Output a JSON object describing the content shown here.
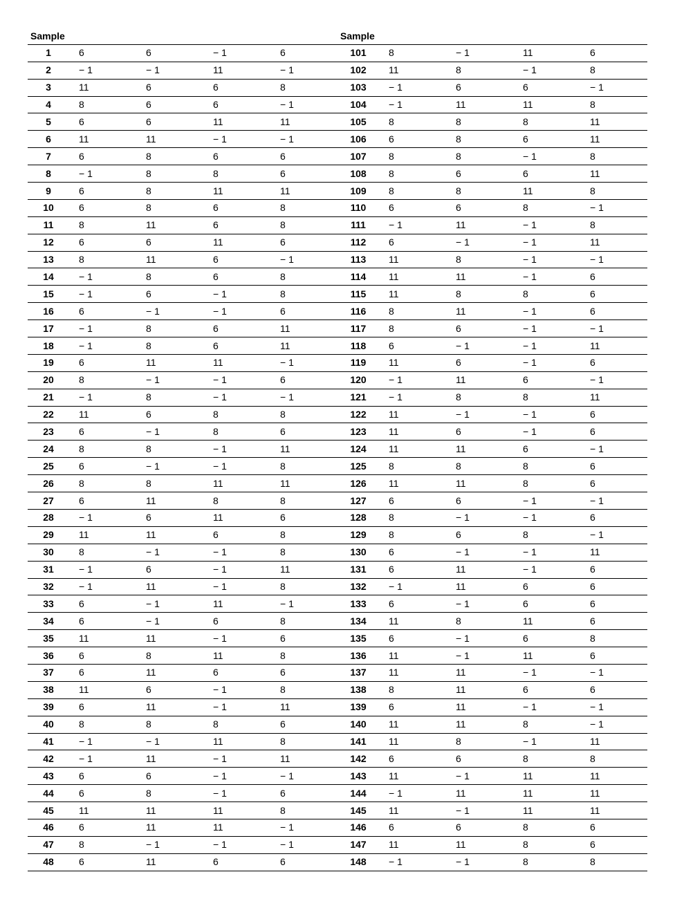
{
  "header_label": "Sample",
  "text_color": "#000000",
  "background_color": "#ffffff",
  "border_color": "#000000",
  "font_size": 14,
  "minus": "− ",
  "columns_per_side": 5,
  "left": [
    [
      "1",
      "6",
      "6",
      "-1",
      "6"
    ],
    [
      "2",
      "-1",
      "-1",
      "11",
      "-1"
    ],
    [
      "3",
      "11",
      "6",
      "6",
      "8"
    ],
    [
      "4",
      "8",
      "6",
      "6",
      "-1"
    ],
    [
      "5",
      "6",
      "6",
      "11",
      "11"
    ],
    [
      "6",
      "11",
      "11",
      "-1",
      "-1"
    ],
    [
      "7",
      "6",
      "8",
      "6",
      "6"
    ],
    [
      "8",
      "-1",
      "8",
      "8",
      "6"
    ],
    [
      "9",
      "6",
      "8",
      "11",
      "11"
    ],
    [
      "10",
      "6",
      "8",
      "6",
      "8"
    ],
    [
      "11",
      "8",
      "11",
      "6",
      "8"
    ],
    [
      "12",
      "6",
      "6",
      "11",
      "6"
    ],
    [
      "13",
      "8",
      "11",
      "6",
      "-1"
    ],
    [
      "14",
      "-1",
      "8",
      "6",
      "8"
    ],
    [
      "15",
      "-1",
      "6",
      "-1",
      "8"
    ],
    [
      "16",
      "6",
      "-1",
      "-1",
      "6"
    ],
    [
      "17",
      "-1",
      "8",
      "6",
      "11"
    ],
    [
      "18",
      "-1",
      "8",
      "6",
      "11"
    ],
    [
      "19",
      "6",
      "11",
      "11",
      "-1"
    ],
    [
      "20",
      "8",
      "-1",
      "-1",
      "6"
    ],
    [
      "21",
      "-1",
      "8",
      "-1",
      "-1"
    ],
    [
      "22",
      "11",
      "6",
      "8",
      "8"
    ],
    [
      "23",
      "6",
      "-1",
      "8",
      "6"
    ],
    [
      "24",
      "8",
      "8",
      "-1",
      "11"
    ],
    [
      "25",
      "6",
      "-1",
      "-1",
      "8"
    ],
    [
      "26",
      "8",
      "8",
      "11",
      "11"
    ],
    [
      "27",
      "6",
      "11",
      "8",
      "8"
    ],
    [
      "28",
      "-1",
      "6",
      "11",
      "6"
    ],
    [
      "29",
      "11",
      "11",
      "6",
      "8"
    ],
    [
      "30",
      "8",
      "-1",
      "-1",
      "8"
    ],
    [
      "31",
      "-1",
      "6",
      "-1",
      "11"
    ],
    [
      "32",
      "-1",
      "11",
      "-1",
      "8"
    ],
    [
      "33",
      "6",
      "-1",
      "11",
      "-1"
    ],
    [
      "34",
      "6",
      "-1",
      "6",
      "8"
    ],
    [
      "35",
      "11",
      "11",
      "-1",
      "6"
    ],
    [
      "36",
      "6",
      "8",
      "11",
      "8"
    ],
    [
      "37",
      "6",
      "11",
      "6",
      "6"
    ],
    [
      "38",
      "11",
      "6",
      "-1",
      "8"
    ],
    [
      "39",
      "6",
      "11",
      "-1",
      "11"
    ],
    [
      "40",
      "8",
      "8",
      "8",
      "6"
    ],
    [
      "41",
      "-1",
      "-1",
      "11",
      "8"
    ],
    [
      "42",
      "-1",
      "11",
      "-1",
      "11"
    ],
    [
      "43",
      "6",
      "6",
      "-1",
      "-1"
    ],
    [
      "44",
      "6",
      "8",
      "-1",
      "6"
    ],
    [
      "45",
      "11",
      "11",
      "11",
      "8"
    ],
    [
      "46",
      "6",
      "11",
      "11",
      "-1"
    ],
    [
      "47",
      "8",
      "-1",
      "-1",
      "-1"
    ],
    [
      "48",
      "6",
      "11",
      "6",
      "6"
    ]
  ],
  "right": [
    [
      "101",
      "8",
      "-1",
      "11",
      "6"
    ],
    [
      "102",
      "11",
      "8",
      "-1",
      "8"
    ],
    [
      "103",
      "-1",
      "6",
      "6",
      "-1"
    ],
    [
      "104",
      "-1",
      "11",
      "11",
      "8"
    ],
    [
      "105",
      "8",
      "8",
      "8",
      "11"
    ],
    [
      "106",
      "6",
      "8",
      "6",
      "11"
    ],
    [
      "107",
      "8",
      "8",
      "-1",
      "8"
    ],
    [
      "108",
      "8",
      "6",
      "6",
      "11"
    ],
    [
      "109",
      "8",
      "8",
      "11",
      "8"
    ],
    [
      "110",
      "6",
      "6",
      "8",
      "-1"
    ],
    [
      "111",
      "-1",
      "11",
      "-1",
      "8"
    ],
    [
      "112",
      "6",
      "-1",
      "-1",
      "11"
    ],
    [
      "113",
      "11",
      "8",
      "-1",
      "-1"
    ],
    [
      "114",
      "11",
      "11",
      "-1",
      "6"
    ],
    [
      "115",
      "11",
      "8",
      "8",
      "6"
    ],
    [
      "116",
      "8",
      "11",
      "-1",
      "6"
    ],
    [
      "117",
      "8",
      "6",
      "-1",
      "-1"
    ],
    [
      "118",
      "6",
      "-1",
      "-1",
      "11"
    ],
    [
      "119",
      "11",
      "6",
      "-1",
      "6"
    ],
    [
      "120",
      "-1",
      "11",
      "6",
      "-1"
    ],
    [
      "121",
      "-1",
      "8",
      "8",
      "11"
    ],
    [
      "122",
      "11",
      "-1",
      "-1",
      "6"
    ],
    [
      "123",
      "11",
      "6",
      "-1",
      "6"
    ],
    [
      "124",
      "11",
      "11",
      "6",
      "-1"
    ],
    [
      "125",
      "8",
      "8",
      "8",
      "6"
    ],
    [
      "126",
      "11",
      "11",
      "8",
      "6"
    ],
    [
      "127",
      "6",
      "6",
      "-1",
      "-1"
    ],
    [
      "128",
      "8",
      "-1",
      "-1",
      "6"
    ],
    [
      "129",
      "8",
      "6",
      "8",
      "-1"
    ],
    [
      "130",
      "6",
      "-1",
      "-1",
      "11"
    ],
    [
      "131",
      "6",
      "11",
      "-1",
      "6"
    ],
    [
      "132",
      "-1",
      "11",
      "6",
      "6"
    ],
    [
      "133",
      "6",
      "-1",
      "6",
      "6"
    ],
    [
      "134",
      "11",
      "8",
      "11",
      "6"
    ],
    [
      "135",
      "6",
      "-1",
      "6",
      "8"
    ],
    [
      "136",
      "11",
      "-1",
      "11",
      "6"
    ],
    [
      "137",
      "11",
      "11",
      "-1",
      "-1"
    ],
    [
      "138",
      "8",
      "11",
      "6",
      "6"
    ],
    [
      "139",
      "6",
      "11",
      "-1",
      "-1"
    ],
    [
      "140",
      "11",
      "11",
      "8",
      "-1"
    ],
    [
      "141",
      "11",
      "8",
      "-1",
      "11"
    ],
    [
      "142",
      "6",
      "6",
      "8",
      "8"
    ],
    [
      "143",
      "11",
      "-1",
      "11",
      "11"
    ],
    [
      "144",
      "-1",
      "11",
      "11",
      "11"
    ],
    [
      "145",
      "11",
      "-1",
      "11",
      "11"
    ],
    [
      "146",
      "6",
      "6",
      "8",
      "6"
    ],
    [
      "147",
      "11",
      "11",
      "8",
      "6"
    ],
    [
      "148",
      "-1",
      "-1",
      "8",
      "8"
    ]
  ]
}
